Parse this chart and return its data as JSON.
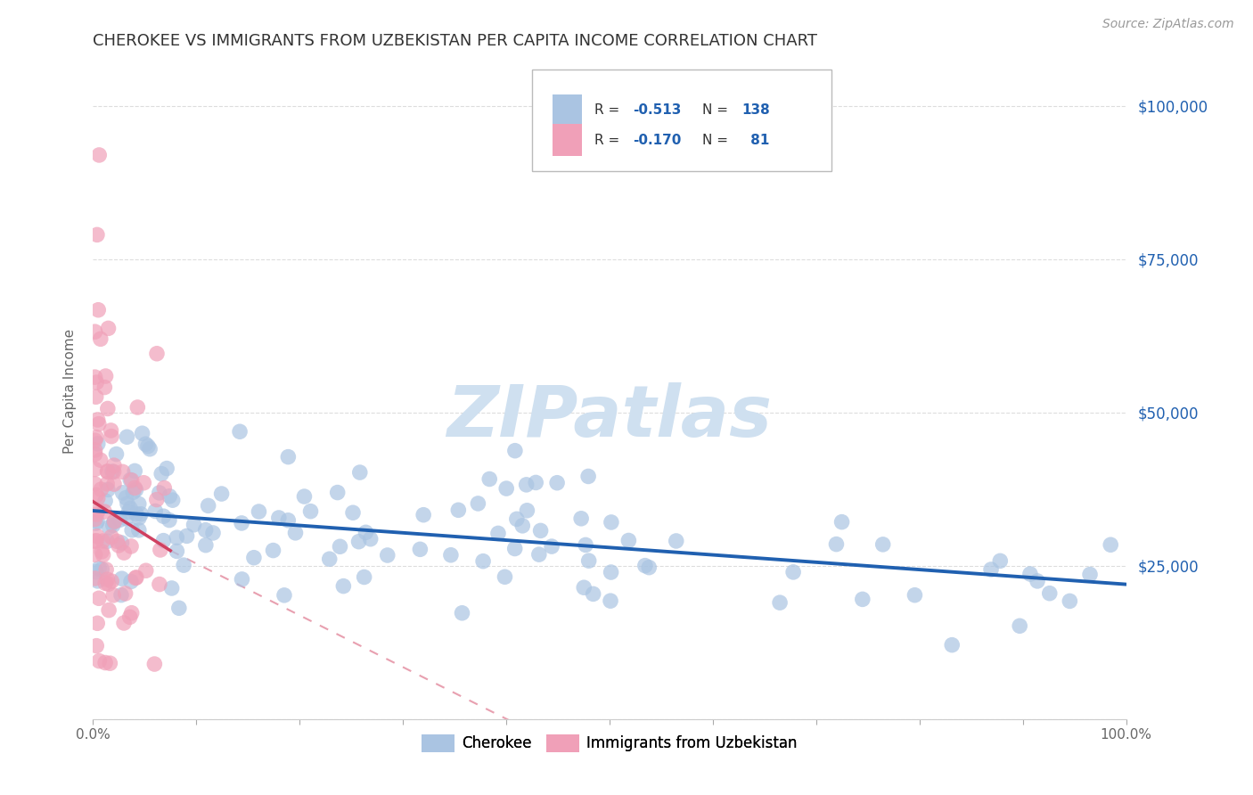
{
  "title": "CHEROKEE VS IMMIGRANTS FROM UZBEKISTAN PER CAPITA INCOME CORRELATION CHART",
  "source": "Source: ZipAtlas.com",
  "ylabel": "Per Capita Income",
  "ytick_labels": [
    "",
    "$25,000",
    "$50,000",
    "$75,000",
    "$100,000"
  ],
  "legend_blue_label": "Cherokee",
  "legend_pink_label": "Immigrants from Uzbekistan",
  "blue_color": "#aac4e2",
  "pink_color": "#f0a0b8",
  "blue_line_color": "#2060b0",
  "pink_line_color": "#d04060",
  "pink_dash_color": "#e8a0b0",
  "watermark": "ZIPatlas",
  "watermark_color": "#cfe0f0",
  "background_color": "#ffffff",
  "grid_color": "#dddddd",
  "title_color": "#333333",
  "right_tick_color": "#2060b0",
  "legend_r_color": "#2060b0",
  "legend_label_color": "#333333",
  "source_color": "#999999",
  "blue_r": "-0.513",
  "blue_n": "138",
  "pink_r": "-0.170",
  "pink_n": "81"
}
